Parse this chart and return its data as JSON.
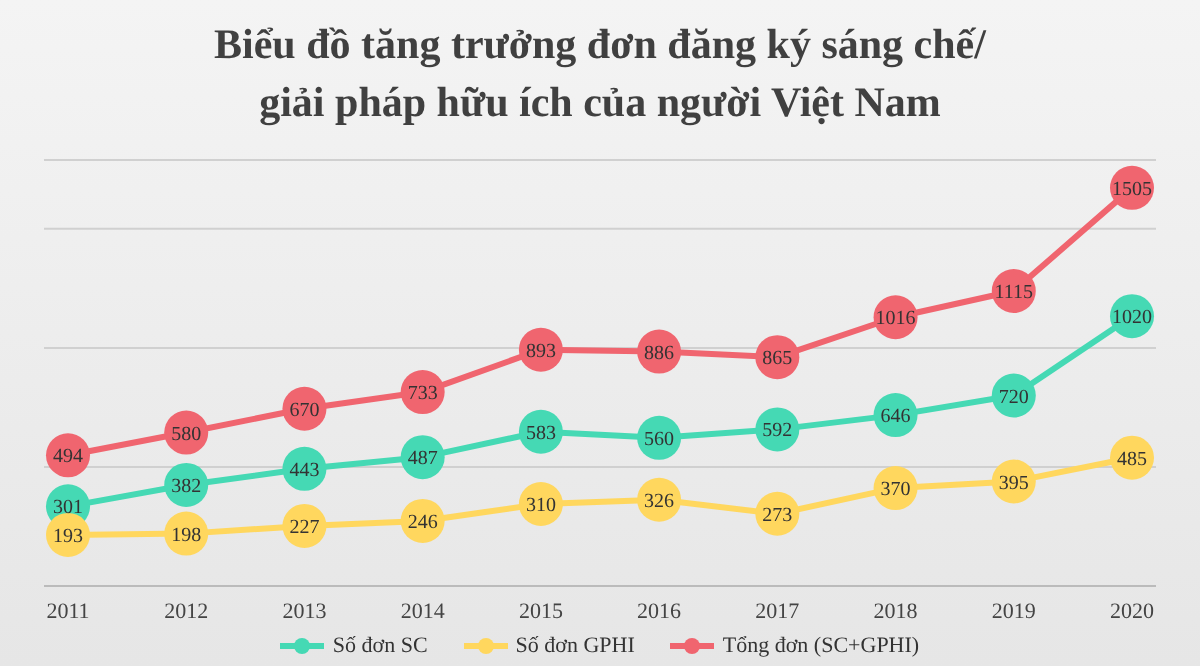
{
  "chart_data": {
    "type": "line",
    "title": "Biểu đồ tăng trưởng đơn đăng ký sáng chế/\ngiải pháp hữu ích của người Việt Nam",
    "categories": [
      "2011",
      "2012",
      "2013",
      "2014",
      "2015",
      "2016",
      "2017",
      "2018",
      "2019",
      "2020"
    ],
    "series": [
      {
        "name": "Số đơn SC",
        "color": "#45d9b4",
        "values": [
          301,
          382,
          443,
          487,
          583,
          560,
          592,
          646,
          720,
          1020
        ]
      },
      {
        "name": "Số đơn GPHI",
        "color": "#ffd75e",
        "values": [
          193,
          198,
          227,
          246,
          310,
          326,
          273,
          370,
          395,
          485
        ]
      },
      {
        "name": "Tổng đơn (SC+GPHI)",
        "color": "#f0656f",
        "values": [
          494,
          580,
          670,
          733,
          893,
          886,
          865,
          1016,
          1115,
          1505
        ]
      }
    ],
    "data_labels": true,
    "grid": "y",
    "legend": "bottom",
    "marker": "circle",
    "line_style": "solid"
  }
}
